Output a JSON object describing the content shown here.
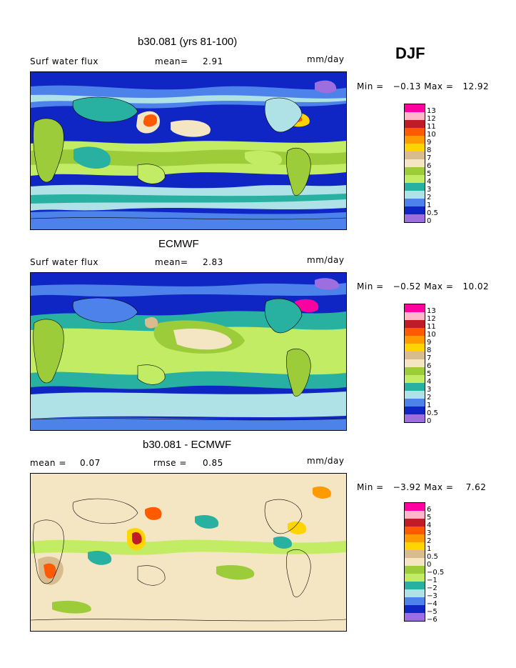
{
  "season": "DJF",
  "panels": [
    {
      "title": "b30.081 (yrs 81-100)",
      "left": "Surf water flux",
      "stat_label": "mean=",
      "stat_value": "2.91",
      "extra_label": "",
      "extra_value": "",
      "units": "mm/day",
      "minmax": "Min =   −0.13 Max =   12.92",
      "colorbar_labels": [
        "13",
        "12",
        "11",
        "10",
        "9",
        "8",
        "7",
        "6",
        "5",
        "4",
        "3",
        "2",
        "1",
        "0.5",
        "0"
      ]
    },
    {
      "title": "ECMWF",
      "left": "Surf water flux",
      "stat_label": "mean=",
      "stat_value": "2.83",
      "extra_label": "",
      "extra_value": "",
      "units": "mm/day",
      "minmax": "Min =   −0.52 Max =   10.02",
      "colorbar_labels": [
        "13",
        "12",
        "11",
        "10",
        "9",
        "8",
        "7",
        "6",
        "5",
        "4",
        "3",
        "2",
        "1",
        "0.5",
        "0"
      ]
    },
    {
      "title": "b30.081 - ECMWF",
      "left": "mean =",
      "stat_label": "",
      "stat_value": "0.07",
      "extra_label": "rmse =",
      "extra_value": "0.85",
      "units": "mm/day",
      "minmax": "Min =   −3.92 Max =    7.62",
      "colorbar_labels": [
        "6",
        "5",
        "4",
        "3",
        "2",
        "1",
        "0.5",
        "0",
        "−0.5",
        "−1",
        "−2",
        "−3",
        "−4",
        "−5",
        "−6"
      ]
    }
  ],
  "colors": {
    "abs_scale": [
      "#ff00a0",
      "#ffb6c8",
      "#c01c28",
      "#ff5a00",
      "#ff9a00",
      "#ffd400",
      "#d8bb8e",
      "#f4e6c2",
      "#9ccc3a",
      "#c2ec64",
      "#28b0a0",
      "#aee2e6",
      "#4c82ea",
      "#1026c4",
      "#9c6ee0"
    ],
    "diff_scale": [
      "#ff00a0",
      "#ffb6c8",
      "#c01c28",
      "#ff5a00",
      "#ff9a00",
      "#ffd400",
      "#d8bb8e",
      "#f4e6c2",
      "#9ccc3a",
      "#c2ec64",
      "#28b0a0",
      "#aee2e6",
      "#4c82ea",
      "#1026c4",
      "#9c6ee0"
    ]
  }
}
